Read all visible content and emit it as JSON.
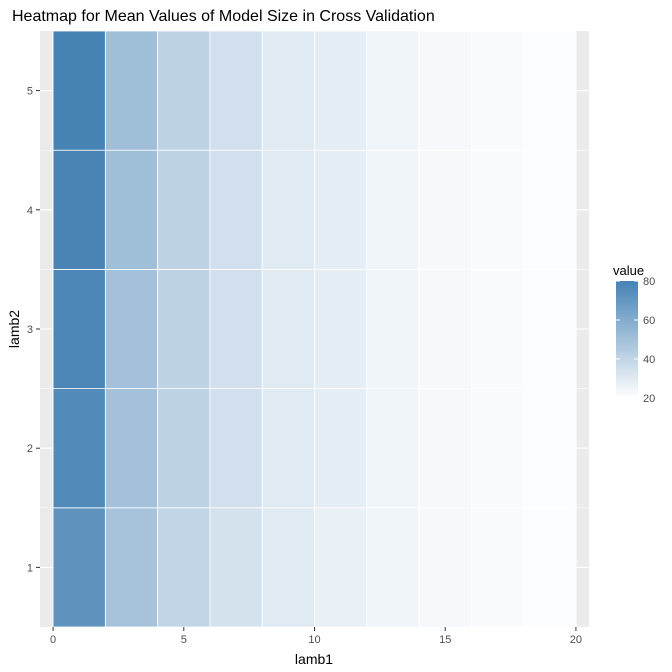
{
  "chart_data": {
    "type": "heatmap",
    "title": "Heatmap for Mean Values of Model Size in Cross Validation",
    "xlabel": "lamb1",
    "ylabel": "lamb2",
    "x_ticks": [
      "0",
      "5",
      "10",
      "15",
      "20"
    ],
    "y_ticks": [
      "1",
      "2",
      "3",
      "4",
      "5"
    ],
    "xlim": [
      -0.5,
      20.5
    ],
    "ylim": [
      0.5,
      5.5
    ],
    "x_centers": [
      1,
      3,
      5,
      7,
      9,
      11,
      13,
      15,
      17,
      19
    ],
    "tile_width": 2,
    "y_centers": [
      1,
      2,
      3,
      4,
      5
    ],
    "tile_height": 1,
    "values": [
      [
        72,
        49,
        40,
        34,
        30,
        27,
        25,
        23,
        22,
        21
      ],
      [
        76,
        50,
        41,
        35,
        30,
        28,
        25,
        23,
        22,
        21
      ],
      [
        78,
        50,
        41,
        35,
        30,
        28,
        25,
        23,
        22,
        21
      ],
      [
        79,
        51,
        41,
        35,
        30,
        28,
        25,
        23,
        22,
        21
      ],
      [
        80,
        51,
        41,
        35,
        30,
        28,
        25,
        23,
        22,
        21
      ]
    ],
    "grid": true,
    "legend": {
      "title": "value",
      "ticks": [
        "20",
        "40",
        "60",
        "80"
      ],
      "range": [
        20,
        80
      ],
      "placement": "right",
      "low_color": "#ffffff",
      "high_color": "#4682b4"
    },
    "colors": {
      "panel_background": "#ebebeb",
      "grid_line": "#ffffff",
      "tile_border": "#ffffff"
    }
  }
}
